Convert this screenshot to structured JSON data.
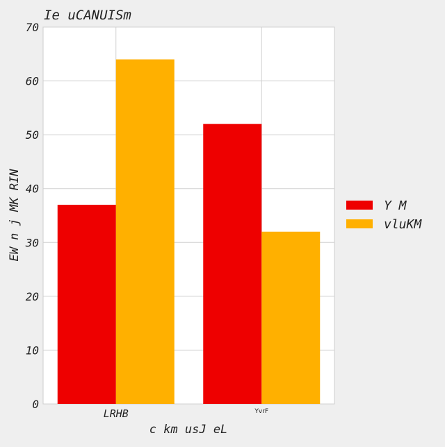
{
  "chart_data": {
    "type": "bar",
    "title": "Ie uCANUISm",
    "xlabel": "c km usJ eL",
    "ylabel": "EW n j MK RIN",
    "categories": [
      "LRHB",
      "YvrF"
    ],
    "series": [
      {
        "name": "Y M",
        "values": [
          37,
          52
        ],
        "color": "#ee0000"
      },
      {
        "name": "vluKM",
        "values": [
          64,
          32
        ],
        "color": "#ffb000"
      }
    ],
    "ylim": [
      0,
      70
    ],
    "yticks": [
      0,
      10,
      20,
      30,
      40,
      50,
      60,
      70
    ],
    "grid": true,
    "legend_position": "right"
  }
}
